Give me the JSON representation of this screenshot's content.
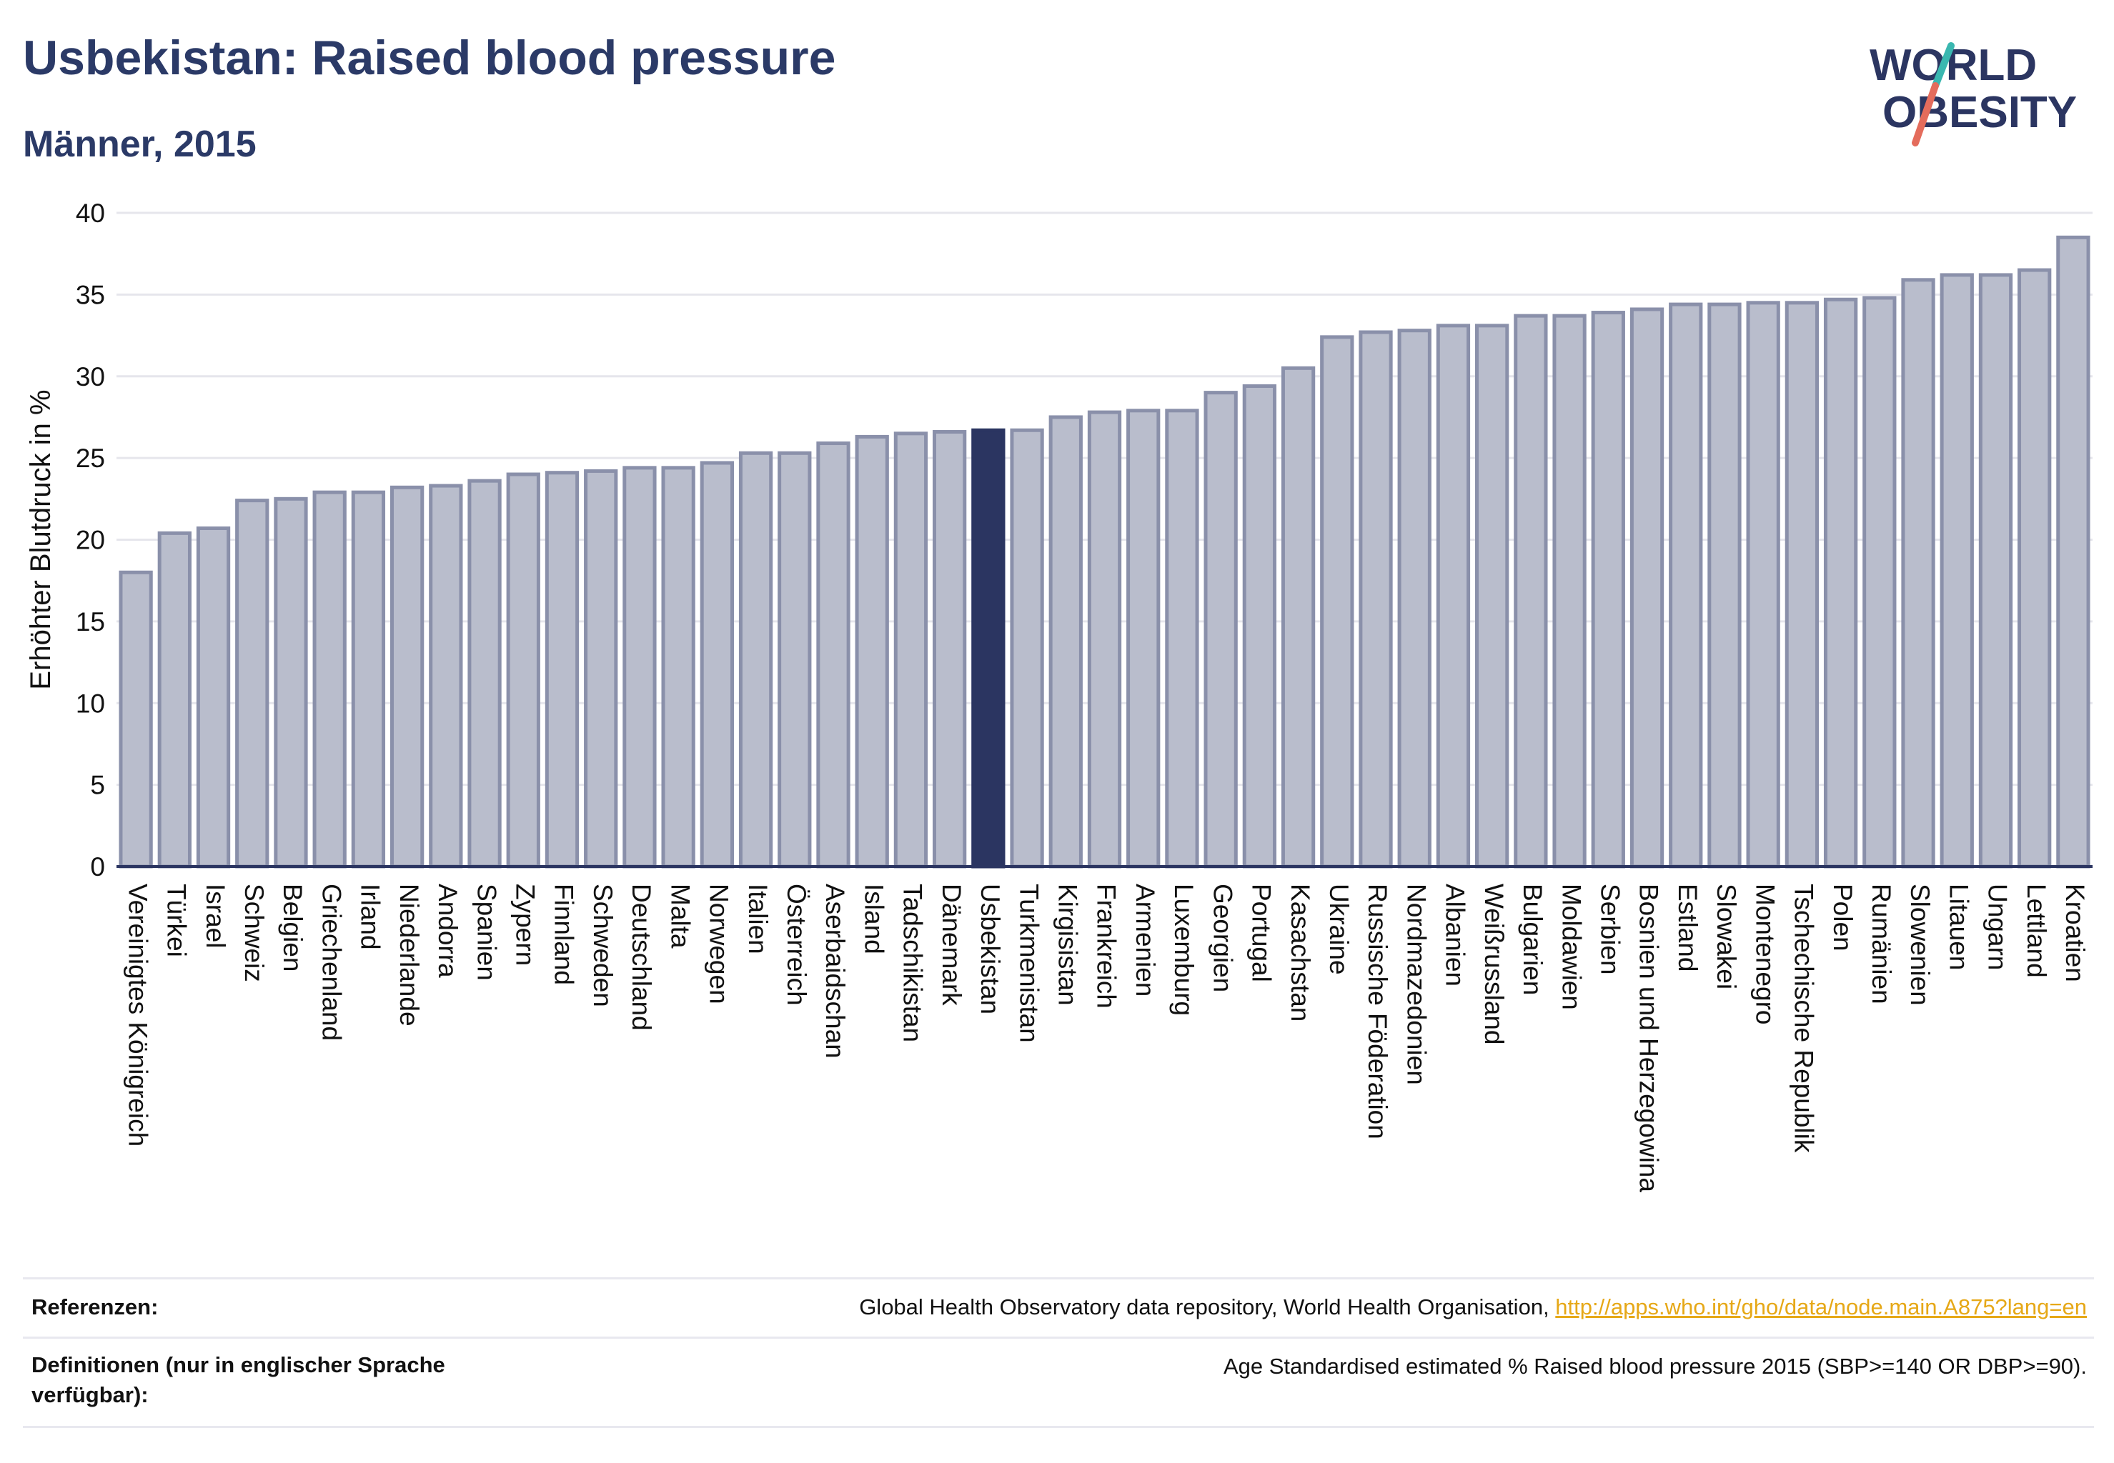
{
  "header": {
    "title": "Usbekistan: Raised blood pressure",
    "subtitle": "Männer, 2015"
  },
  "logo": {
    "line1": "WORLD",
    "line2": "OBESITY"
  },
  "chart_data": {
    "type": "bar",
    "ylabel": "Erhöhter Blutdruck in %",
    "ylim": [
      0,
      40
    ],
    "yticks": [
      0,
      5,
      10,
      15,
      20,
      25,
      30,
      35,
      40
    ],
    "grid": true,
    "highlight": "Usbekistan",
    "colors": {
      "bar": "#b9bdcc",
      "bar_border": "#8a90aa",
      "highlight": "#2b3561",
      "grid": "#e6e6ec",
      "axis": "#2b3561"
    },
    "categories": [
      "Vereinigtes Königreich",
      "Türkei",
      "Israel",
      "Schweiz",
      "Belgien",
      "Griechenland",
      "Irland",
      "Niederlande",
      "Andorra",
      "Spanien",
      "Zypern",
      "Finnland",
      "Schweden",
      "Deutschland",
      "Malta",
      "Norwegen",
      "Italien",
      "Österreich",
      "Aserbaidschan",
      "Island",
      "Tadschikistan",
      "Dänemark",
      "Usbekistan",
      "Turkmenistan",
      "Kirgisistan",
      "Frankreich",
      "Armenien",
      "Luxemburg",
      "Georgien",
      "Portugal",
      "Kasachstan",
      "Ukraine",
      "Russische Föderation",
      "Nordmazedonien",
      "Albanien",
      "Weißrussland",
      "Bulgarien",
      "Moldawien",
      "Serbien",
      "Bosnien und Herzegowina",
      "Estland",
      "Slowakei",
      "Montenegro",
      "Tschechische Republik",
      "Polen",
      "Rumänien",
      "Slowenien",
      "Litauen",
      "Ungarn",
      "Lettland",
      "Kroatien"
    ],
    "values": [
      18.0,
      20.4,
      20.7,
      22.4,
      22.5,
      22.9,
      22.9,
      23.2,
      23.3,
      23.6,
      24.0,
      24.1,
      24.2,
      24.4,
      24.4,
      24.7,
      25.3,
      25.3,
      25.9,
      26.3,
      26.5,
      26.6,
      26.7,
      26.7,
      27.5,
      27.8,
      27.9,
      27.9,
      29.0,
      29.4,
      30.5,
      32.4,
      32.7,
      32.8,
      33.1,
      33.1,
      33.7,
      33.7,
      33.9,
      34.1,
      34.4,
      34.4,
      34.5,
      34.5,
      34.7,
      34.8,
      35.9,
      36.2,
      36.2,
      36.5,
      38.5
    ]
  },
  "references": {
    "ref_label": "Referenzen:",
    "ref_text": "Global Health Observatory data repository, World Health Organisation, ",
    "ref_link": "http://apps.who.int/gho/data/node.main.A875?lang=en",
    "def_label": "Definitionen (nur in englischer Sprache verfügbar):",
    "def_text": "Age Standardised estimated % Raised blood pressure 2015 (SBP>=140 OR DBP>=90)."
  }
}
